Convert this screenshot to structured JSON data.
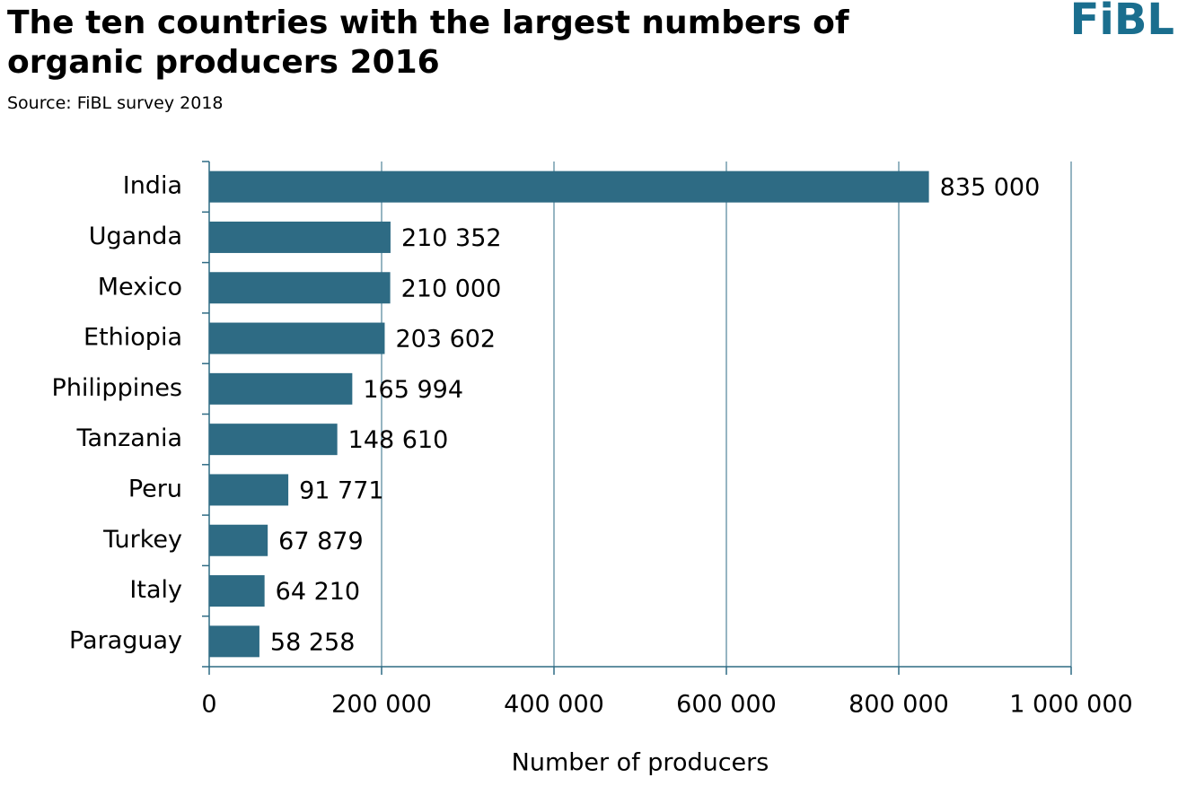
{
  "chart_data": {
    "type": "barh",
    "title": "The ten countries with the largest numbers of organic producers 2016",
    "subtitle": "Source: FiBL survey 2018",
    "logo": "FiBL",
    "x_label": "Number of producers",
    "categories": [
      "India",
      "Uganda",
      "Mexico",
      "Ethiopia",
      "Philippines",
      "Tanzania",
      "Peru",
      "Turkey",
      "Italy",
      "Paraguay"
    ],
    "values": [
      835000,
      210352,
      210000,
      203602,
      165994,
      148610,
      91771,
      67879,
      64210,
      58258
    ],
    "value_labels": [
      "835 000",
      "210 352",
      "210 000",
      "203 602",
      "165 994",
      "148 610",
      "91 771",
      "67 879",
      "64 210",
      "58 258"
    ],
    "color": "#2e6b84",
    "xlim": [
      0,
      1000000
    ],
    "xticks": [
      0,
      {
        "value": 200000,
        "label": "200 000"
      },
      {
        "value": 400000,
        "label": "400 000"
      },
      {
        "value": 600000,
        "label": "600 000"
      },
      {
        "value": 800000,
        "label": "800 000"
      },
      {
        "value": 1000000,
        "label": "1 000 000"
      }
    ],
    "grid": true
  }
}
